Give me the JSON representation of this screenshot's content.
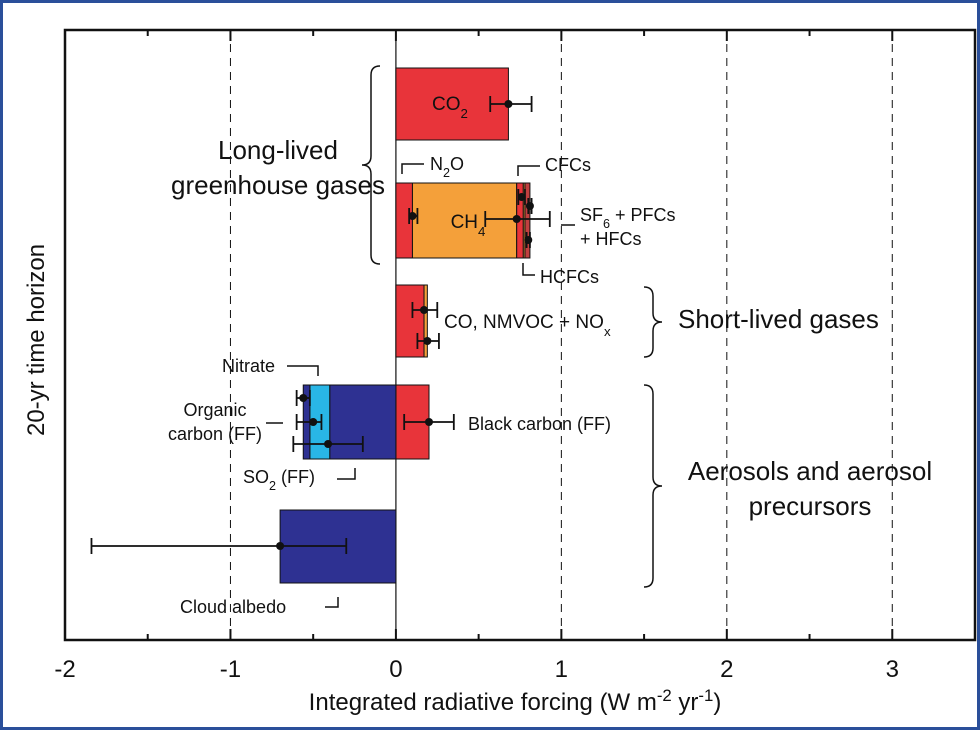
{
  "chart_data": {
    "type": "bar",
    "orientation": "horizontal",
    "ylabel": "20-yr time horizon",
    "xlabel": [
      [
        "Integrated radiative forcing (W m",
        {
          "sup": "-2"
        },
        " yr",
        {
          "sup": "-1"
        },
        ")"
      ]
    ],
    "xlim": [
      -2,
      3.5
    ],
    "xticks": [
      -2,
      -1,
      0,
      1,
      2,
      3
    ],
    "minor_xticks": [
      -1.5,
      -0.5,
      0.5,
      1.5,
      2.5
    ],
    "grid": "dashed",
    "rows": [
      {
        "segments": [
          {
            "value": 0.68,
            "color": "#e8343a"
          }
        ],
        "errors": [
          {
            "value": 0.68,
            "low": 0.57,
            "high": 0.82
          }
        ]
      },
      {
        "segments": [
          {
            "value": 0.1,
            "color": "#e8343a"
          },
          {
            "value": 0.63,
            "color": "#f4a03a"
          },
          {
            "value": 0.04,
            "color": "#e8343a"
          },
          {
            "value": 0.01,
            "color": "#f4a03a"
          },
          {
            "value": 0.03,
            "color": "#c0403f"
          }
        ],
        "errors": [
          {
            "value": 0.1,
            "low": 0.08,
            "high": 0.13
          },
          {
            "value": 0.73,
            "low": 0.54,
            "high": 0.93
          },
          {
            "value": 0.76,
            "low": 0.74,
            "high": 0.78
          },
          {
            "value": 0.81,
            "low": 0.8,
            "high": 0.82
          },
          {
            "value": 0.8,
            "low": 0.79,
            "high": 0.81
          }
        ]
      },
      {
        "segments": [
          {
            "value": 0.17,
            "color": "#e8343a"
          },
          {
            "value": 0.02,
            "color": "#f4a03a"
          }
        ],
        "errors": [
          {
            "value": 0.17,
            "low": 0.1,
            "high": 0.25
          },
          {
            "value": 0.19,
            "low": 0.13,
            "high": 0.26
          }
        ]
      },
      {
        "segments": [
          {
            "value": 0.2,
            "color": "#e8343a"
          },
          {
            "value": -0.4,
            "color": "#2e3192"
          },
          {
            "value": -0.12,
            "color": "#29b6e6"
          },
          {
            "value": -0.04,
            "color": "#2e3192"
          }
        ],
        "errors": [
          {
            "value": 0.2,
            "low": 0.05,
            "high": 0.35
          },
          {
            "value": -0.56,
            "low": -0.6,
            "high": -0.52
          },
          {
            "value": -0.5,
            "low": -0.6,
            "high": -0.45
          },
          {
            "value": -0.41,
            "low": -0.62,
            "high": -0.2
          }
        ]
      },
      {
        "segments": [
          {
            "value": -0.7,
            "color": "#2e3192"
          }
        ],
        "errors": [
          {
            "value": -0.7,
            "low": -1.84,
            "high": -0.3
          }
        ]
      }
    ],
    "labels": [
      [
        [
          "CO",
          {
            "sub": "2"
          }
        ]
      ],
      [
        [
          "N",
          {
            "sub": "2"
          },
          "O"
        ]
      ],
      [
        [
          "CFCs"
        ]
      ],
      [
        [
          "CH",
          {
            "sub": "4"
          }
        ]
      ],
      [
        [
          "SF",
          {
            "sub": "6"
          },
          " + PFCs"
        ],
        [
          "+ HFCs"
        ]
      ],
      [
        [
          "HCFCs"
        ]
      ],
      [
        [
          "CO, NMVOC + NO",
          {
            "sub": "x"
          }
        ]
      ],
      [
        [
          "Black carbon (FF)"
        ]
      ],
      [
        [
          "Nitrate"
        ]
      ],
      [
        [
          "Organic"
        ],
        [
          "carbon (FF)"
        ]
      ],
      [
        [
          "SO",
          {
            "sub": "2"
          },
          " (FF)"
        ]
      ],
      [
        [
          "Cloud albedo"
        ]
      ],
      [
        [
          "Long-lived"
        ],
        [
          "greenhouse gases"
        ]
      ],
      [
        [
          "Short-lived gases"
        ]
      ],
      [
        [
          "Aerosols and aerosol"
        ],
        [
          "precursors"
        ]
      ]
    ]
  }
}
